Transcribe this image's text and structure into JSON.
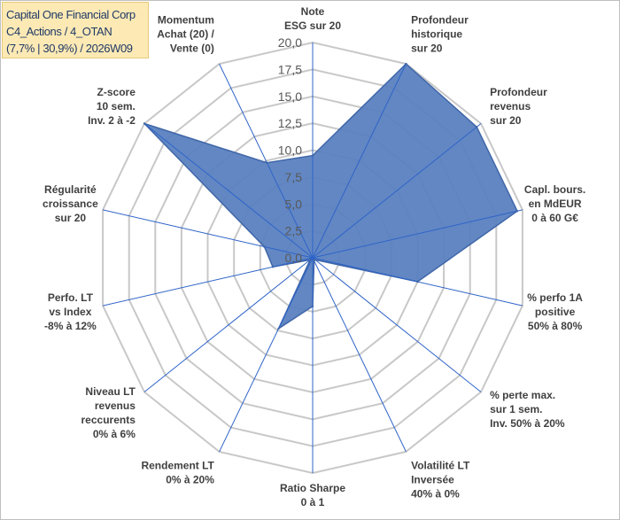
{
  "title_box": {
    "line1": "Capital One Financial Corp",
    "line2": "C4_Actions / 4_OTAN",
    "line3": "(7,7% | 30,9%) / 2026W09"
  },
  "colors": {
    "fill": "#5a81c0",
    "stroke": "#3f66a8",
    "grid": "#c8c8c8",
    "axis": "#2f64c8"
  },
  "chart_data": {
    "type": "radar",
    "title": "",
    "rmin": 0,
    "rmax": 20,
    "tick_step": 2.5,
    "tick_labels": [
      "0,0",
      "2,5",
      "5,0",
      "7,5",
      "10,0",
      "12,5",
      "15,0",
      "17,5",
      "20,0"
    ],
    "axes": [
      {
        "label": [
          "Note",
          "ESG sur 20"
        ],
        "value": 9.5
      },
      {
        "label": [
          "Profondeur",
          "historique",
          "sur 20"
        ],
        "value": 20
      },
      {
        "label": [
          "Profondeur",
          "revenus",
          "sur 20"
        ],
        "value": 19.5
      },
      {
        "label": [
          "Capl. bours.",
          "en MdEUR",
          "0 à 60 G€"
        ],
        "value": 19.5
      },
      {
        "label": [
          "% perfo 1A",
          "positive",
          "50% à 80%"
        ],
        "value": 10
      },
      {
        "label": [
          "% perte max.",
          "sur 1 sem.",
          "Inv. 50% à 20%"
        ],
        "value": 0.3
      },
      {
        "label": [
          "Volatilité LT",
          "Inversée",
          "40% à 0%"
        ],
        "value": 0.3
      },
      {
        "label": [
          "Ratio Sharpe",
          "0 à 1"
        ],
        "value": 4.5
      },
      {
        "label": [
          "Rendement LT",
          "0% à 20%"
        ],
        "value": 7.3
      },
      {
        "label": [
          "Niveau LT",
          "revenus",
          "reccurents",
          "0% à 6%"
        ],
        "value": 0.3
      },
      {
        "label": [
          "Perfo. LT",
          "vs Index",
          "-8% à 12%"
        ],
        "value": 3.8
      },
      {
        "label": [
          "Régularité",
          "croissance",
          "sur 20"
        ],
        "value": 4.6
      },
      {
        "label": [
          "Z-score",
          "10 sem.",
          "Inv. 2 à -2"
        ],
        "value": 20
      },
      {
        "label": [
          "Momentum",
          "Achat (20) /",
          "Vente (0)"
        ],
        "value": 9.8
      }
    ]
  }
}
